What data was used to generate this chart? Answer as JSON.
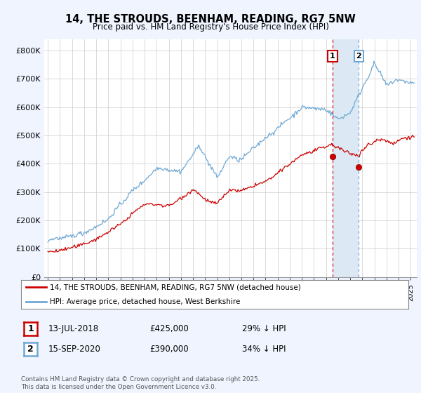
{
  "title": "14, THE STROUDS, BEENHAM, READING, RG7 5NW",
  "subtitle": "Price paid vs. HM Land Registry's House Price Index (HPI)",
  "ylabel_ticks": [
    "£0",
    "£100K",
    "£200K",
    "£300K",
    "£400K",
    "£500K",
    "£600K",
    "£700K",
    "£800K"
  ],
  "ytick_vals": [
    0,
    100000,
    200000,
    300000,
    400000,
    500000,
    600000,
    700000,
    800000
  ],
  "ylim": [
    0,
    840000
  ],
  "xlim_start": 1994.7,
  "xlim_end": 2025.5,
  "hpi_color": "#6fa8d4",
  "price_color": "#cc0000",
  "marker1_date": 2018.54,
  "marker2_date": 2020.71,
  "marker1_price": 425000,
  "marker2_price": 390000,
  "marker1_label": "13-JUL-2018",
  "marker2_label": "15-SEP-2020",
  "marker1_hpi_pct": "29% ↓ HPI",
  "marker2_hpi_pct": "34% ↓ HPI",
  "legend_line1": "14, THE STROUDS, BEENHAM, READING, RG7 5NW (detached house)",
  "legend_line2": "HPI: Average price, detached house, West Berkshire",
  "footnote": "Contains HM Land Registry data © Crown copyright and database right 2025.\nThis data is licensed under the Open Government Licence v3.0.",
  "background_color": "#f0f4ff",
  "plot_bg_color": "#ffffff",
  "shade_color": "#dce9f5"
}
